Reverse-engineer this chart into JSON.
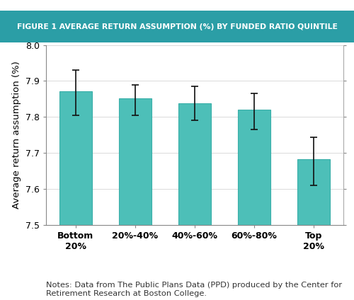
{
  "categories": [
    "Bottom\n20%",
    "20%-40%",
    "40%-60%",
    "60%-80%",
    "Top\n20%"
  ],
  "values": [
    7.872,
    7.852,
    7.838,
    7.82,
    7.682
  ],
  "errors_upper": [
    0.058,
    0.038,
    0.048,
    0.045,
    0.062
  ],
  "errors_lower": [
    0.068,
    0.048,
    0.048,
    0.055,
    0.072
  ],
  "bar_color": "#4DBFB8",
  "bar_edgecolor": "#3AAFA9",
  "error_color": "#111111",
  "title": "FIGURE 1 AVERAGE RETURN ASSUMPTION (%) BY FUNDED RATIO QUINTILE",
  "title_bg_color": "#2B9EA6",
  "title_text_color": "#FFFFFF",
  "ylabel": "Average return assumption (%)",
  "ylim": [
    7.5,
    8.0
  ],
  "yticks": [
    7.5,
    7.6,
    7.7,
    7.8,
    7.9,
    8.0
  ],
  "note": "Notes: Data from The Public Plans Data (PPD) produced by the Center for\nRetirement Research at Boston College.",
  "bg_color": "#FFFFFF",
  "plot_bg_color": "#FFFFFF",
  "title_fontsize": 7.8,
  "ylabel_fontsize": 9.5,
  "tick_fontsize": 9,
  "note_fontsize": 8.2,
  "bar_width": 0.55
}
